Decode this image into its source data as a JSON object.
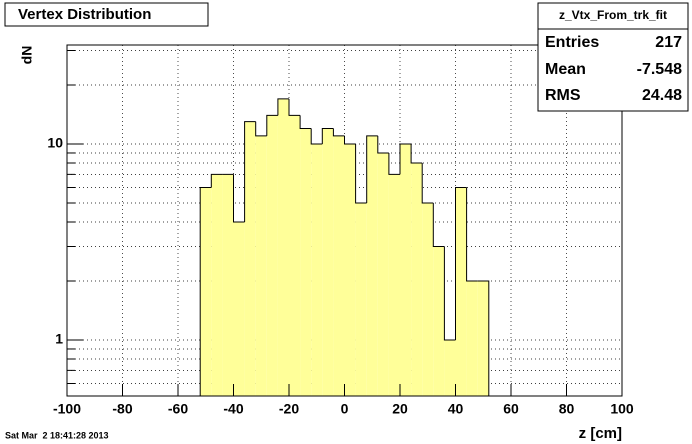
{
  "chart_data": {
    "type": "histogram",
    "title": "Vertex Distribution",
    "xlabel": "z [cm]",
    "ylabel": "dN",
    "bins": [
      -52,
      -48,
      -44,
      -40,
      -36,
      -32,
      -28,
      -24,
      -20,
      -16,
      -12,
      -8,
      -4,
      0,
      4,
      8,
      12,
      16,
      20,
      24,
      28,
      32,
      36,
      40,
      44,
      48,
      52
    ],
    "values": [
      6,
      7,
      7,
      4,
      13,
      11,
      14,
      17,
      14,
      12,
      10,
      12,
      11,
      10,
      5,
      11,
      9,
      7,
      10,
      8,
      5,
      3,
      1,
      6,
      2,
      2
    ],
    "color": "#ffff99",
    "xlim": [
      -100,
      100
    ],
    "xticks": [
      -100,
      -80,
      -60,
      -40,
      -20,
      0,
      20,
      40,
      60,
      80,
      100
    ],
    "ylim": [
      0.518,
      32
    ],
    "yscale": "log",
    "yticks": [
      1,
      10
    ],
    "yminorticks": [
      0.6,
      0.7,
      0.8,
      0.9,
      2,
      3,
      4,
      5,
      6,
      7,
      8,
      9,
      20,
      30
    ],
    "grid": true,
    "stats": {
      "name": "z_Vtx_From_trk_fit",
      "rows": [
        [
          "Entries",
          217
        ],
        [
          "Mean",
          -7.548
        ],
        [
          "RMS",
          24.48
        ]
      ]
    },
    "timestamp": "Sat Mar  2 18:41:28 2013"
  }
}
